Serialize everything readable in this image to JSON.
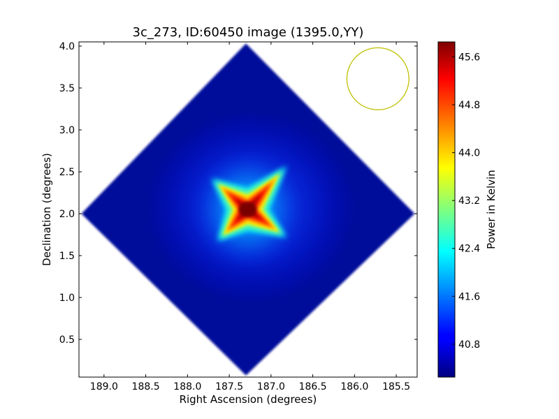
{
  "chart_data": {
    "type": "heatmap",
    "title": "3c_273, ID:60450 image (1395.0,YY)",
    "xlabel": "Right Ascension (degrees)",
    "ylabel": "Declination (degrees)",
    "xlim": [
      189.3,
      185.25
    ],
    "ylim": [
      0.05,
      4.05
    ],
    "x_ticks": [
      189.0,
      188.5,
      188.0,
      187.5,
      187.0,
      186.5,
      186.0,
      185.5
    ],
    "x_tick_labels": [
      "189.0",
      "188.5",
      "188.0",
      "187.5",
      "187.0",
      "186.5",
      "186.0",
      "185.5"
    ],
    "y_ticks": [
      0.5,
      1.0,
      1.5,
      2.0,
      2.5,
      3.0,
      3.5,
      4.0
    ],
    "y_tick_labels": [
      "0.5",
      "1.0",
      "1.5",
      "2.0",
      "2.5",
      "3.0",
      "3.5",
      "4.0"
    ],
    "field_of_view": {
      "shape": "diamond",
      "corners": [
        [
          187.3,
          4.03
        ],
        [
          185.28,
          2.0
        ],
        [
          187.3,
          0.07
        ],
        [
          189.27,
          2.0
        ]
      ]
    },
    "source": {
      "ra": 187.28,
      "dec": 2.05,
      "peak": 45.7,
      "shape": "four-pointed cross"
    },
    "background_level": 40.3,
    "beam": {
      "ra": 185.72,
      "dec": 3.61,
      "radius_deg": 0.37,
      "color": "#bfbf00"
    },
    "colorbar": {
      "label": "Power in Kelvin",
      "range": [
        40.25,
        45.85
      ],
      "ticks": [
        40.8,
        41.6,
        42.4,
        43.2,
        44.0,
        44.8,
        45.6
      ],
      "tick_labels": [
        "40.8",
        "41.6",
        "42.4",
        "43.2",
        "44.0",
        "44.8",
        "45.6"
      ],
      "colormap": "jet"
    }
  }
}
